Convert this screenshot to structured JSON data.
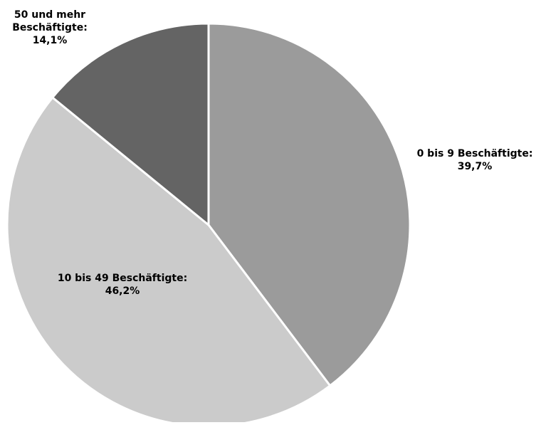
{
  "chart_data": {
    "type": "pie",
    "title": "",
    "slices": [
      {
        "label_lines": [
          "0 bis 9 Beschäftigte:",
          "39,7%"
        ],
        "value": 39.7,
        "color": "#9b9b9b"
      },
      {
        "label_lines": [
          "10 bis 49 Beschäftigte:",
          "46,2%"
        ],
        "value": 46.2,
        "color": "#cbcbcb"
      },
      {
        "label_lines": [
          "50 und mehr",
          "Beschäftigte:",
          "14,1%"
        ],
        "value": 14.1,
        "color": "#646464"
      }
    ],
    "start_angle": "12 o'clock",
    "direction": "clockwise",
    "slice_border_color": "#ffffff"
  }
}
